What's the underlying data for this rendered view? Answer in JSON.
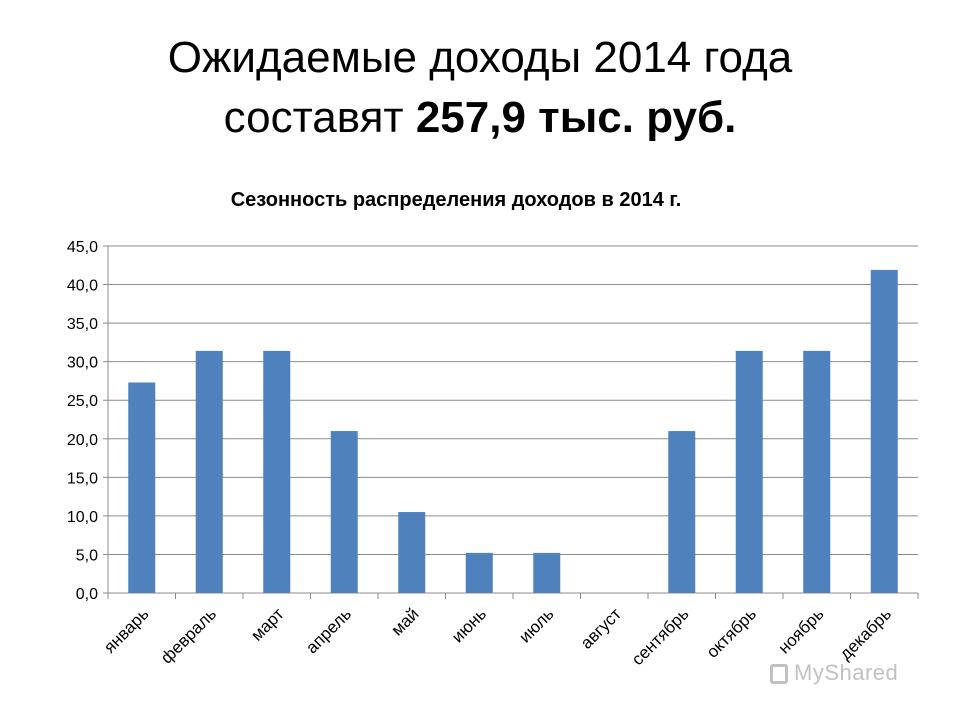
{
  "slide": {
    "title_line1": "Ожидаемые доходы 2014 года",
    "title_line2_prefix": "составят ",
    "title_line2_bold": "257,9 тыс. руб."
  },
  "watermark": "MyShared",
  "chart_data": {
    "type": "bar",
    "title": "Сезонность распределения доходов в 2014 г.",
    "xlabel": "",
    "ylabel": "",
    "categories": [
      "январь",
      "февраль",
      "март",
      "апрель",
      "май",
      "июнь",
      "июль",
      "август",
      "сентябрь",
      "октябрь",
      "ноябрь",
      "декабрь"
    ],
    "values": [
      27.3,
      31.4,
      31.4,
      21.0,
      10.5,
      5.2,
      5.2,
      0.0,
      21.0,
      31.4,
      31.4,
      41.9
    ],
    "ylim": [
      0,
      45
    ],
    "yticks": [
      "0,0",
      "5,0",
      "10,0",
      "15,0",
      "20,0",
      "25,0",
      "30,0",
      "35,0",
      "40,0",
      "45,0"
    ],
    "grid": true,
    "legend": "none",
    "bar_color": "#4F81BD"
  }
}
